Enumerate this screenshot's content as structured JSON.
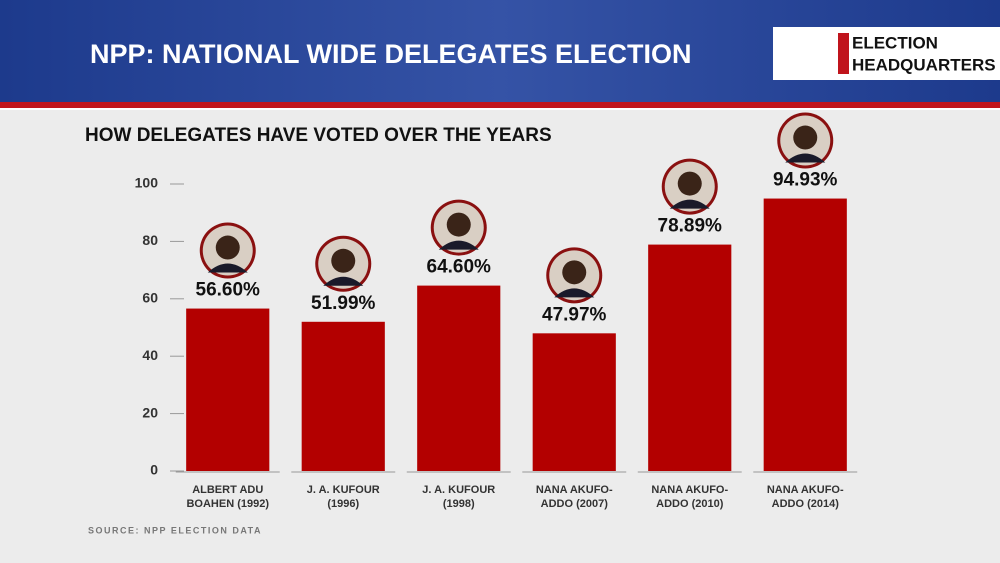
{
  "header": {
    "title": "NPP: NATIONAL WIDE DELEGATES ELECTION",
    "logo": [
      "ELECTION",
      "HEADQUARTERS"
    ]
  },
  "chart_data": {
    "type": "bar",
    "title": "HOW DELEGATES HAVE VOTED OVER THE YEARS",
    "categories": [
      "ALBERT ADU BOAHEN (1992)",
      "J. A. KUFOUR (1996)",
      "J. A. KUFOUR (1998)",
      "NANA AKUFO-ADDO (2007)",
      "NANA AKUFO-ADDO (2010)",
      "NANA AKUFO-ADDO (2014)"
    ],
    "values": [
      56.6,
      51.99,
      64.6,
      47.97,
      78.89,
      94.93
    ],
    "value_labels": [
      "56.60%",
      "51.99%",
      "64.60%",
      "47.97%",
      "78.89%",
      "94.93%"
    ],
    "color": "#b30000",
    "ylim": [
      0,
      100
    ],
    "yticks": [
      0,
      20,
      40,
      60,
      80,
      100
    ],
    "source": "SOURCE: NPP ELECTION DATA"
  }
}
